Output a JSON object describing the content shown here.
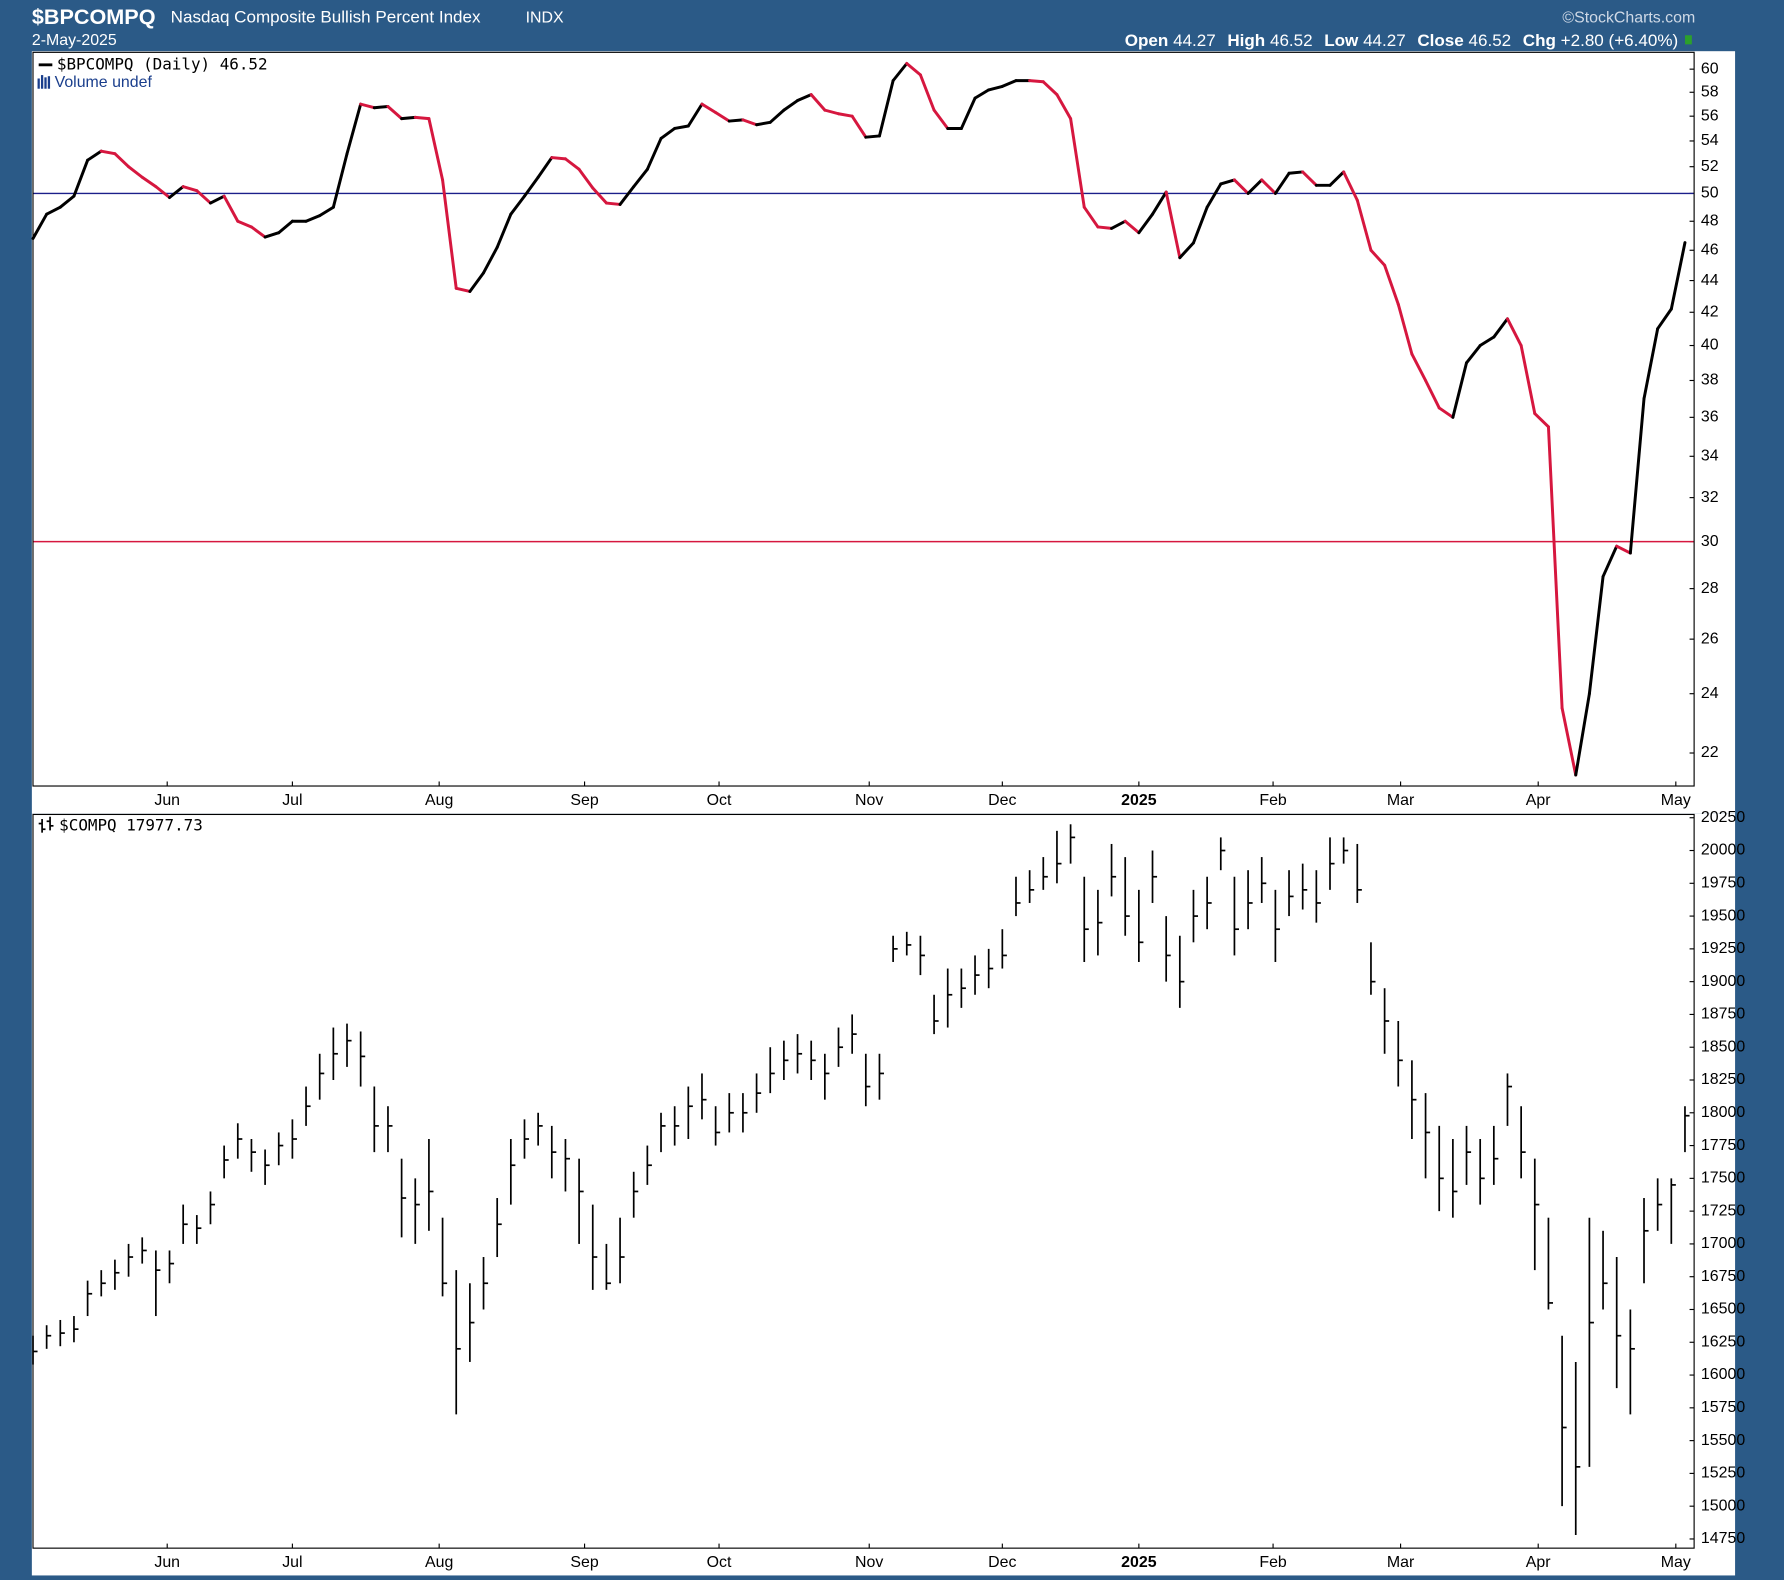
{
  "header": {
    "symbol": "$BPCOMPQ",
    "name": "Nasdaq Composite Bullish Percent Index",
    "exchange": "INDX",
    "date": "2-May-2025",
    "source": "©StockCharts.com",
    "quote": [
      {
        "label": "Open",
        "value": "44.27"
      },
      {
        "label": "High",
        "value": "46.52"
      },
      {
        "label": "Low",
        "value": "44.27"
      },
      {
        "label": "Close",
        "value": "46.52"
      },
      {
        "label": "Chg",
        "value": "+2.80 (+6.40%)"
      }
    ]
  },
  "chart_data": [
    {
      "type": "line",
      "legend": "$BPCOMPQ (Daily) 46.52",
      "sublegend": "Volume undef",
      "up_color": "#000000",
      "down_color": "#d6173f",
      "log_scale": true,
      "xlim": [
        0,
        121.67
      ],
      "xticks": [
        {
          "value": 9.83,
          "label": "Jun"
        },
        {
          "value": 19,
          "label": "Jul"
        },
        {
          "value": 29.75,
          "label": "Aug"
        },
        {
          "value": 40.4,
          "label": "Sep"
        },
        {
          "value": 50.25,
          "label": "Oct"
        },
        {
          "value": 61.25,
          "label": "Nov"
        },
        {
          "value": 71,
          "label": "Dec"
        },
        {
          "value": 81,
          "label": "2025",
          "bold": true
        },
        {
          "value": 90.83,
          "label": "Feb"
        },
        {
          "value": 100.17,
          "label": "Mar"
        },
        {
          "value": 110.25,
          "label": "Apr"
        },
        {
          "value": 120.33,
          "label": "May"
        }
      ],
      "ylim": [
        20.96,
        61.5
      ],
      "yticks": [
        22,
        24,
        26,
        28,
        30,
        32,
        34,
        36,
        38,
        40,
        42,
        44,
        46,
        48,
        50,
        52,
        54,
        56,
        58,
        60
      ],
      "hlines": [
        {
          "value": 50,
          "color": "#1b1f8a"
        },
        {
          "value": 30,
          "color": "#d6173f"
        }
      ],
      "values": [
        46.8,
        48.5,
        49.0,
        49.8,
        52.5,
        53.2,
        53.0,
        52.0,
        51.2,
        50.5,
        49.7,
        50.5,
        50.2,
        49.3,
        49.8,
        48.0,
        47.6,
        46.9,
        47.2,
        48.0,
        48.0,
        48.4,
        49.0,
        53.0,
        57.0,
        56.7,
        56.8,
        55.8,
        55.9,
        55.8,
        51.0,
        43.5,
        43.3,
        44.5,
        46.2,
        48.5,
        49.8,
        51.2,
        52.7,
        52.6,
        51.8,
        50.4,
        49.3,
        49.2,
        50.5,
        51.8,
        54.2,
        55.0,
        55.2,
        57.0,
        56.3,
        55.6,
        55.7,
        55.3,
        55.5,
        56.5,
        57.3,
        57.8,
        56.5,
        56.2,
        56.0,
        54.3,
        54.4,
        59.0,
        60.5,
        59.5,
        56.5,
        55.0,
        55.0,
        57.5,
        58.2,
        58.5,
        59.0,
        59.0,
        58.9,
        57.8,
        55.8,
        49.0,
        47.6,
        47.5,
        48.0,
        47.2,
        48.5,
        50.1,
        45.5,
        46.5,
        49.0,
        50.7,
        51.0,
        50.0,
        51.0,
        50.0,
        51.5,
        51.6,
        50.6,
        50.6,
        51.6,
        49.5,
        46.0,
        45.0,
        42.5,
        39.5,
        38.0,
        36.5,
        36.0,
        39.0,
        40.0,
        40.5,
        41.6,
        40.0,
        36.2,
        35.5,
        23.5,
        21.3,
        24.0,
        28.5,
        29.8,
        29.5,
        37.0,
        41.0,
        42.2,
        46.52
      ]
    },
    {
      "type": "ohlc",
      "legend": "$COMPQ 17977.73",
      "color": "#000000",
      "xlim": [
        0,
        121.67
      ],
      "xticks": [
        {
          "value": 9.83,
          "label": "Jun"
        },
        {
          "value": 19,
          "label": "Jul"
        },
        {
          "value": 29.75,
          "label": "Aug"
        },
        {
          "value": 40.4,
          "label": "Sep"
        },
        {
          "value": 50.25,
          "label": "Oct"
        },
        {
          "value": 61.25,
          "label": "Nov"
        },
        {
          "value": 71,
          "label": "Dec"
        },
        {
          "value": 81,
          "label": "2025",
          "bold": true
        },
        {
          "value": 90.83,
          "label": "Feb"
        },
        {
          "value": 100.17,
          "label": "Mar"
        },
        {
          "value": 110.25,
          "label": "Apr"
        },
        {
          "value": 120.33,
          "label": "May"
        }
      ],
      "ylim": [
        14680,
        20275
      ],
      "yticks": [
        14750,
        15000,
        15250,
        15500,
        15750,
        16000,
        16250,
        16500,
        16750,
        17000,
        17250,
        17500,
        17750,
        18000,
        18250,
        18500,
        18750,
        19000,
        19250,
        19500,
        19750,
        20000,
        20250
      ],
      "high": [
        16300,
        16380,
        16420,
        16450,
        16720,
        16800,
        16880,
        17000,
        17050,
        16950,
        16950,
        17300,
        17220,
        17400,
        17750,
        17920,
        17800,
        17720,
        17850,
        17950,
        18200,
        18450,
        18650,
        18680,
        18620,
        18200,
        18050,
        17650,
        17500,
        17800,
        17200,
        16800,
        16700,
        16900,
        17350,
        17800,
        17950,
        18000,
        17900,
        17800,
        17650,
        17300,
        17000,
        17200,
        17550,
        17750,
        18000,
        18050,
        18200,
        18300,
        18050,
        18150,
        18150,
        18300,
        18500,
        18550,
        18600,
        18550,
        18450,
        18650,
        18750,
        18450,
        18450,
        19350,
        19380,
        19350,
        18900,
        19100,
        19100,
        19200,
        19250,
        19400,
        19800,
        19850,
        19950,
        20150,
        20200,
        19800,
        19700,
        20050,
        19950,
        19700,
        20000,
        19500,
        19350,
        19700,
        19800,
        20100,
        19800,
        19850,
        19950,
        19700,
        19850,
        19900,
        19850,
        20100,
        20100,
        20050,
        19300,
        18950,
        18700,
        18400,
        18150,
        17900,
        17800,
        17900,
        17800,
        17900,
        18300,
        18050,
        17650,
        17200,
        16300,
        16100,
        17200,
        17100,
        16900,
        16500,
        17350,
        17500,
        17500,
        18050
      ],
      "low": [
        16080,
        16200,
        16220,
        16250,
        16450,
        16600,
        16650,
        16750,
        16850,
        16450,
        16700,
        17000,
        17000,
        17150,
        17500,
        17650,
        17550,
        17450,
        17600,
        17650,
        17900,
        18100,
        18250,
        18350,
        18200,
        17700,
        17700,
        17050,
        17000,
        17100,
        16600,
        15700,
        16100,
        16500,
        16900,
        17300,
        17650,
        17750,
        17500,
        17400,
        17000,
        16650,
        16650,
        16700,
        17200,
        17450,
        17700,
        17750,
        17800,
        17950,
        17750,
        17850,
        17850,
        18000,
        18150,
        18250,
        18300,
        18250,
        18100,
        18350,
        18450,
        18050,
        18100,
        19150,
        19200,
        19050,
        18600,
        18650,
        18800,
        18900,
        18950,
        19100,
        19500,
        19600,
        19700,
        19750,
        19900,
        19150,
        19200,
        19650,
        19350,
        19150,
        19600,
        19000,
        18800,
        19300,
        19400,
        19850,
        19200,
        19400,
        19600,
        19150,
        19500,
        19550,
        19450,
        19700,
        19900,
        19600,
        18900,
        18450,
        18200,
        17800,
        17500,
        17250,
        17200,
        17450,
        17300,
        17450,
        17900,
        17500,
        16800,
        16500,
        15000,
        14780,
        15300,
        16500,
        15900,
        15700,
        16700,
        17100,
        17000,
        17700
      ],
      "close": [
        16180,
        16300,
        16320,
        16350,
        16620,
        16700,
        16780,
        16900,
        16950,
        16800,
        16850,
        17150,
        17120,
        17300,
        17640,
        17800,
        17700,
        17600,
        17750,
        17800,
        18050,
        18300,
        18450,
        18550,
        18430,
        17900,
        17900,
        17350,
        17300,
        17400,
        16700,
        16200,
        16400,
        16700,
        17150,
        17600,
        17800,
        17900,
        17700,
        17650,
        17400,
        16900,
        16700,
        16900,
        17400,
        17600,
        17900,
        17900,
        18050,
        18100,
        17850,
        18000,
        18000,
        18150,
        18300,
        18400,
        18450,
        18400,
        18300,
        18500,
        18600,
        18200,
        18300,
        19250,
        19280,
        19200,
        18700,
        18900,
        18950,
        19050,
        19100,
        19200,
        19600,
        19700,
        19800,
        19900,
        20100,
        19400,
        19450,
        19800,
        19500,
        19300,
        19800,
        19200,
        19000,
        19500,
        19600,
        20000,
        19400,
        19600,
        19750,
        19400,
        19650,
        19700,
        19600,
        19900,
        20000,
        19700,
        19000,
        18700,
        18400,
        18100,
        17850,
        17500,
        17400,
        17700,
        17500,
        17650,
        18200,
        17700,
        17300,
        16550,
        15600,
        15300,
        16400,
        16700,
        16300,
        16200,
        17100,
        17300,
        17450,
        17977.73
      ]
    }
  ]
}
